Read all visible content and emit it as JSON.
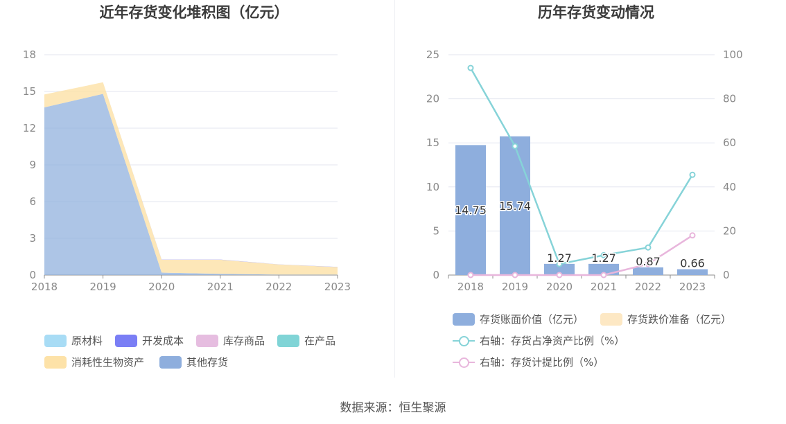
{
  "source_text": "数据来源：恒生聚源",
  "chart_data": [
    {
      "type": "area",
      "title": "近年存货变化堆积图（亿元）",
      "x": [
        "2018",
        "2019",
        "2020",
        "2021",
        "2022",
        "2023"
      ],
      "ylim": [
        0,
        18
      ],
      "yticks": [
        "0",
        "3",
        "6",
        "9",
        "12",
        "15",
        "18"
      ],
      "grid": true,
      "legend_position": "bottom",
      "series": [
        {
          "name": "原材料",
          "color": "#a8dcf5",
          "values": [
            0,
            0,
            0,
            0,
            0,
            0
          ]
        },
        {
          "name": "开发成本",
          "color": "#7a7ef5",
          "values": [
            0,
            0,
            0.02,
            0.02,
            0.01,
            0.01
          ]
        },
        {
          "name": "库存商品",
          "color": "#e6bde0",
          "values": [
            0,
            0,
            0,
            0,
            0,
            0
          ]
        },
        {
          "name": "在产品",
          "color": "#80d4d6",
          "values": [
            0,
            0,
            0,
            0,
            0,
            0
          ]
        },
        {
          "name": "消耗性生物资产",
          "color": "#fde2a8",
          "values": [
            1.05,
            0.95,
            1.05,
            1.15,
            0.83,
            0.62
          ]
        },
        {
          "name": "其他存货",
          "color": "#8eaedd",
          "values": [
            13.7,
            14.8,
            0.2,
            0.1,
            0.03,
            0.03
          ]
        }
      ]
    },
    {
      "type": "bar",
      "title": "历年存货变动情况",
      "x": [
        "2018",
        "2019",
        "2020",
        "2021",
        "2022",
        "2023"
      ],
      "ylim": [
        0,
        25
      ],
      "yticks": [
        "0",
        "5",
        "10",
        "15",
        "20",
        "25"
      ],
      "y2lim": [
        0,
        100
      ],
      "y2ticks": [
        "0",
        "20",
        "40",
        "60",
        "80",
        "100"
      ],
      "grid": true,
      "legend_position": "bottom",
      "series": [
        {
          "name": "存货账面价值（亿元）",
          "kind": "bar",
          "color": "#8eaedd",
          "values": [
            14.75,
            15.74,
            1.27,
            1.27,
            0.87,
            0.66
          ],
          "labels": [
            "14.75",
            "15.74",
            "1.27",
            "1.27",
            "0.87",
            "0.66"
          ]
        },
        {
          "name": "存货跌价准备（亿元）",
          "kind": "bar",
          "color": "#fde8c4",
          "values": [
            0,
            0,
            0,
            0,
            0,
            0
          ]
        },
        {
          "name": "右轴：存货占净资产比例（%）",
          "kind": "line",
          "axis": "right",
          "color": "#86d3d8",
          "values": [
            94,
            58.5,
            5,
            9,
            12.5,
            45.5
          ]
        },
        {
          "name": "右轴：存货计提比例（%）",
          "kind": "line",
          "axis": "right",
          "color": "#e8b6dc",
          "values": [
            0,
            0,
            0,
            0,
            5,
            18
          ]
        }
      ]
    }
  ]
}
